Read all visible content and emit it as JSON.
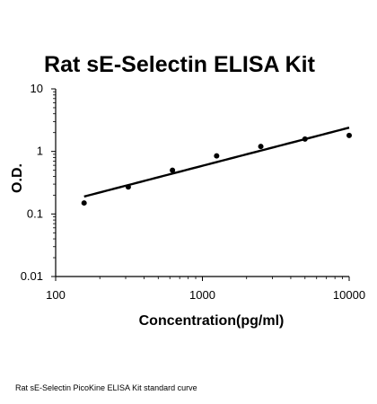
{
  "chart_data": {
    "type": "scatter",
    "title": "Rat sE-Selectin ELISA Kit",
    "xlabel": "Concentration(pg/ml)",
    "ylabel": "O.D.",
    "x_scale": "log",
    "y_scale": "log",
    "xlim": [
      100,
      10000
    ],
    "ylim": [
      0.01,
      10
    ],
    "x_ticks": [
      "100",
      "1000",
      "10000"
    ],
    "y_ticks": [
      "0.01",
      "0.1",
      "1",
      "10"
    ],
    "grid": false,
    "legend": "none",
    "series": [
      {
        "type": "scatter",
        "x": [
          156.25,
          312.5,
          625,
          1250,
          2500,
          5000,
          10000
        ],
        "y": [
          0.15,
          0.27,
          0.5,
          0.85,
          1.2,
          1.58,
          1.8
        ]
      },
      {
        "type": "line",
        "fit": "power",
        "x": [
          156.25,
          10000
        ],
        "y": [
          0.19,
          2.4
        ]
      }
    ],
    "colors": {
      "points": "#000000",
      "fit_line": "#000000",
      "axes": "#000000"
    }
  },
  "caption": "Rat sE-Selectin PicoKine ELISA Kit standard curve"
}
